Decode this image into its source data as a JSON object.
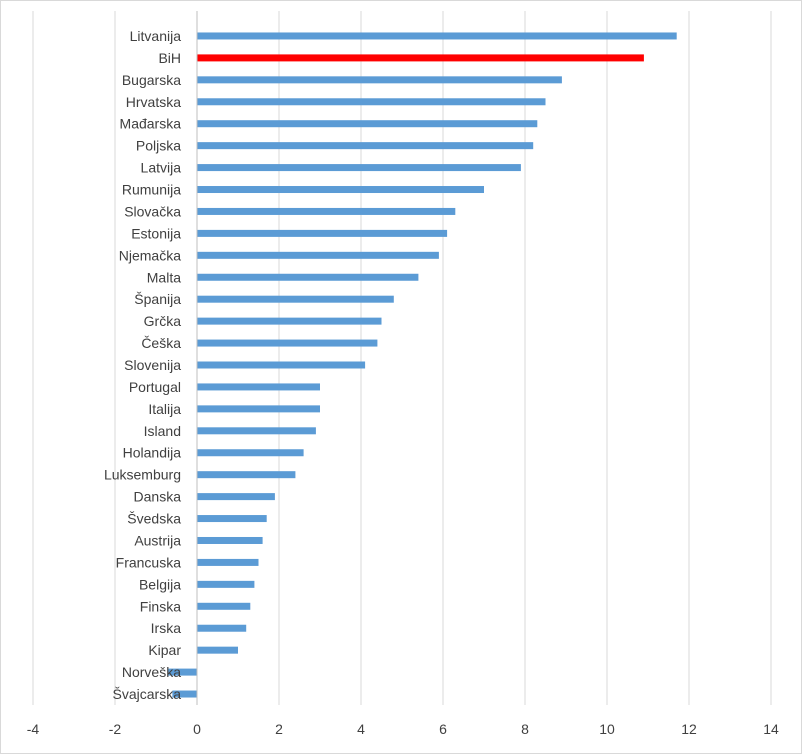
{
  "chart_data": {
    "type": "bar",
    "orientation": "horizontal",
    "categories": [
      "Litvanija",
      "BiH",
      "Bugarska",
      "Hrvatska",
      "Mađarska",
      "Poljska",
      "Latvija",
      "Rumunija",
      "Slovačka",
      "Estonija",
      "Njemačka",
      "Malta",
      "Španija",
      "Grčka",
      "Češka",
      "Slovenija",
      "Portugal",
      "Italija",
      "Island",
      "Holandija",
      "Luksemburg",
      "Danska",
      "Švedska",
      "Austrija",
      "Francuska",
      "Belgija",
      "Finska",
      "Irska",
      "Kipar",
      "Norveška",
      "Švajcarska"
    ],
    "values": [
      11.7,
      10.9,
      8.9,
      8.5,
      8.3,
      8.2,
      7.9,
      7.0,
      6.3,
      6.1,
      5.9,
      5.4,
      4.8,
      4.5,
      4.4,
      4.1,
      3.0,
      3.0,
      2.9,
      2.6,
      2.4,
      1.9,
      1.7,
      1.6,
      1.5,
      1.4,
      1.3,
      1.2,
      1.0,
      -0.7,
      -0.6
    ],
    "highlight": "BiH",
    "colors": {
      "bar": "#5b9bd5",
      "highlight": "#ff0000",
      "grid": "#d9d9d9",
      "axis": "#bfbfbf"
    },
    "x_ticks": [
      "-4",
      "-2",
      "0",
      "2",
      "4",
      "6",
      "8",
      "10",
      "12",
      "14"
    ],
    "xlim": [
      -4,
      14
    ],
    "title": "",
    "xlabel": "",
    "ylabel": "",
    "grid": "vertical",
    "legend": "none"
  }
}
